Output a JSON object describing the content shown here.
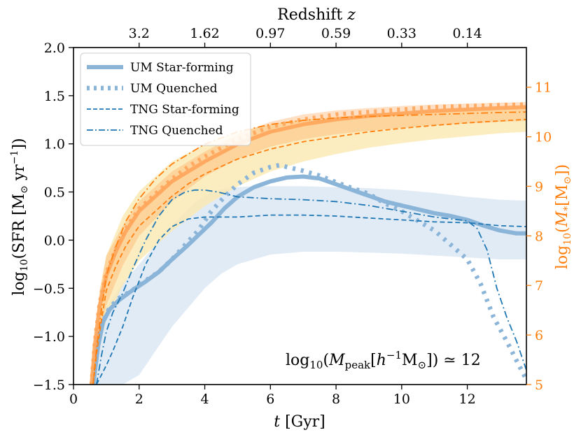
{
  "chart_data": {
    "type": "line",
    "title": "",
    "xlabel": "t [Gyr]",
    "ylabel": "log10(SFR [M⊙ yr−1])",
    "y2label": "log10(M* [M⊙])",
    "toplabel": "Redshift z",
    "annotation": "log10(Mpeak[h−1M⊙]) ≃ 12",
    "xlim": [
      0,
      13.8
    ],
    "ylim": [
      -1.5,
      2.0
    ],
    "y2lim": [
      5,
      11.8
    ],
    "x_ticks": [
      "0",
      "2",
      "4",
      "6",
      "8",
      "10",
      "12"
    ],
    "y_ticks": [
      "2.0",
      "1.5",
      "1.0",
      "0.5",
      "0.0",
      "−0.5",
      "−1.0",
      "−1.5"
    ],
    "y2_ticks": [
      "11",
      "10",
      "9",
      "8",
      "7",
      "6",
      "5"
    ],
    "top_ticks": [
      {
        "label": "3.2",
        "t": 2.0
      },
      {
        "label": "1.62",
        "t": 4.0
      },
      {
        "label": "0.97",
        "t": 6.0
      },
      {
        "label": "0.59",
        "t": 8.0
      },
      {
        "label": "0.33",
        "t": 10.0
      },
      {
        "label": "0.14",
        "t": 12.0
      }
    ],
    "colors": {
      "um": "#8ab4d8",
      "tng": "#1f77b4",
      "mass": "#ff7f0e",
      "mass_light": "#ffa55a",
      "band_blue": "#dce8f5",
      "band_yellow": "#fbe9b0"
    },
    "legend": {
      "position": "top-left",
      "entries": [
        {
          "label": "UM Star-forming",
          "style": "thick-solid"
        },
        {
          "label": "UM Quenched",
          "style": "thick-dotted"
        },
        {
          "label": "TNG Star-forming",
          "style": "dashed"
        },
        {
          "label": "TNG Quenched",
          "style": "dashdot"
        }
      ]
    },
    "sfr_series": [
      {
        "name": "UM Star-forming",
        "x": [
          0.6,
          0.75,
          0.9,
          1.1,
          1.4,
          1.8,
          2.2,
          2.6,
          3.0,
          3.4,
          3.8,
          4.2,
          4.6,
          5.0,
          5.5,
          6.0,
          6.5,
          7.0,
          7.5,
          8.0,
          8.5,
          9.0,
          9.5,
          10.0,
          10.5,
          11.0,
          11.5,
          12.0,
          12.5,
          13.0,
          13.5,
          13.8
        ],
        "y": [
          -1.5,
          -1.1,
          -0.85,
          -0.72,
          -0.62,
          -0.52,
          -0.43,
          -0.33,
          -0.2,
          -0.08,
          0.05,
          0.18,
          0.33,
          0.45,
          0.55,
          0.61,
          0.65,
          0.66,
          0.64,
          0.58,
          0.52,
          0.46,
          0.4,
          0.36,
          0.32,
          0.28,
          0.25,
          0.21,
          0.15,
          0.1,
          0.07,
          0.07
        ]
      },
      {
        "name": "UM Quenched",
        "x": [
          0.6,
          0.75,
          0.9,
          1.1,
          1.4,
          1.8,
          2.2,
          2.6,
          3.0,
          3.4,
          3.8,
          4.2,
          4.6,
          5.0,
          5.5,
          6.0,
          6.3,
          6.5,
          7.0,
          7.5,
          8.0,
          8.5,
          9.0,
          9.5,
          10.0,
          10.5,
          11.0,
          11.5,
          12.0,
          12.4,
          12.8,
          13.2,
          13.5,
          13.8
        ],
        "y": [
          -1.5,
          -1.0,
          -0.85,
          -0.7,
          -0.6,
          -0.52,
          -0.42,
          -0.33,
          -0.2,
          -0.05,
          0.1,
          0.3,
          0.45,
          0.58,
          0.7,
          0.76,
          0.78,
          0.76,
          0.72,
          0.67,
          0.6,
          0.54,
          0.48,
          0.38,
          0.3,
          0.2,
          0.1,
          -0.05,
          -0.2,
          -0.45,
          -0.8,
          -1.05,
          -1.25,
          -1.45
        ]
      },
      {
        "name": "TNG Star-forming",
        "x": [
          0.7,
          0.85,
          1.0,
          1.2,
          1.5,
          1.8,
          2.2,
          2.6,
          3.0,
          3.5,
          4.0,
          4.5,
          5.0,
          5.5,
          6.0,
          7.0,
          8.0,
          9.0,
          10.0,
          11.0,
          12.0,
          13.0,
          13.8
        ],
        "y": [
          -1.5,
          -1.4,
          -1.3,
          -1.15,
          -0.9,
          -0.6,
          -0.25,
          0.0,
          0.14,
          0.22,
          0.24,
          0.24,
          0.24,
          0.25,
          0.26,
          0.26,
          0.25,
          0.23,
          0.21,
          0.19,
          0.18,
          0.15,
          0.14
        ]
      },
      {
        "name": "TNG Quenched",
        "x": [
          0.7,
          0.85,
          1.0,
          1.2,
          1.5,
          1.8,
          2.2,
          2.6,
          3.0,
          3.4,
          3.7,
          4.0,
          4.4,
          5.0,
          6.0,
          7.0,
          8.0,
          9.0,
          10.0,
          11.0,
          11.5,
          12.0,
          12.3,
          12.6,
          12.9,
          13.2,
          13.5,
          13.8
        ],
        "y": [
          -1.5,
          -1.2,
          -0.95,
          -0.75,
          -0.55,
          -0.3,
          0.0,
          0.25,
          0.42,
          0.5,
          0.52,
          0.52,
          0.5,
          0.45,
          0.43,
          0.42,
          0.4,
          0.36,
          0.3,
          0.24,
          0.22,
          0.2,
          0.12,
          -0.1,
          -0.5,
          -0.8,
          -1.05,
          -1.35
        ]
      }
    ],
    "sfr_band": {
      "name": "UM Star-forming scatter",
      "x": [
        0.6,
        1.0,
        1.5,
        2.0,
        2.5,
        3.0,
        3.5,
        4.0,
        4.5,
        5.0,
        5.5,
        6.0,
        7.0,
        8.0,
        9.0,
        10.0,
        11.0,
        12.0,
        13.0,
        13.8
      ],
      "lower": [
        -1.5,
        -1.5,
        -1.5,
        -1.4,
        -1.15,
        -0.9,
        -0.7,
        -0.5,
        -0.35,
        -0.25,
        -0.2,
        -0.15,
        -0.12,
        -0.12,
        -0.13,
        -0.14,
        -0.16,
        -0.18,
        -0.2,
        -0.2
      ],
      "upper": [
        -1.2,
        -0.7,
        -0.45,
        -0.25,
        -0.05,
        0.15,
        0.33,
        0.47,
        0.53,
        0.55,
        0.56,
        0.56,
        0.56,
        0.55,
        0.54,
        0.52,
        0.49,
        0.45,
        0.42,
        0.41
      ]
    },
    "mass_series": [
      {
        "name": "UM Star-forming M*",
        "x": [
          0.55,
          0.65,
          0.8,
          1.0,
          1.3,
          1.6,
          2.0,
          2.5,
          3.0,
          3.5,
          4.0,
          5.0,
          6.0,
          7.0,
          8.0,
          9.0,
          10.0,
          11.0,
          12.0,
          13.0,
          13.8
        ],
        "y": [
          5.0,
          5.8,
          6.6,
          7.2,
          7.7,
          8.1,
          8.5,
          8.8,
          9.1,
          9.3,
          9.5,
          9.85,
          10.1,
          10.25,
          10.35,
          10.42,
          10.47,
          10.52,
          10.55,
          10.58,
          10.6
        ]
      },
      {
        "name": "UM Quenched M*",
        "x": [
          0.55,
          0.65,
          0.8,
          1.0,
          1.3,
          1.6,
          2.0,
          2.5,
          3.0,
          3.5,
          4.0,
          5.0,
          6.0,
          7.0,
          8.0,
          9.0,
          10.0,
          11.0,
          12.0,
          13.0,
          13.8
        ],
        "y": [
          5.0,
          5.85,
          6.65,
          7.25,
          7.75,
          8.15,
          8.55,
          8.85,
          9.15,
          9.4,
          9.6,
          9.95,
          10.2,
          10.35,
          10.45,
          10.5,
          10.55,
          10.6,
          10.62,
          10.64,
          10.65
        ]
      },
      {
        "name": "TNG Star-forming M*",
        "x": [
          0.6,
          0.7,
          0.85,
          1.0,
          1.3,
          1.6,
          2.0,
          2.5,
          3.0,
          3.5,
          4.0,
          5.0,
          6.0,
          7.0,
          8.0,
          9.0,
          10.0,
          11.0,
          12.0,
          13.0,
          13.8
        ],
        "y": [
          5.0,
          5.6,
          6.3,
          6.9,
          7.4,
          7.8,
          8.2,
          8.5,
          8.8,
          9.05,
          9.25,
          9.55,
          9.75,
          9.9,
          10.0,
          10.1,
          10.17,
          10.23,
          10.28,
          10.32,
          10.35
        ]
      },
      {
        "name": "TNG Quenched M*",
        "x": [
          0.6,
          0.7,
          0.85,
          1.0,
          1.3,
          1.6,
          2.0,
          2.5,
          3.0,
          3.5,
          4.0,
          5.0,
          6.0,
          7.0,
          8.0,
          9.0,
          10.0,
          11.0,
          12.0,
          13.0,
          13.8
        ],
        "y": [
          5.0,
          5.7,
          6.5,
          7.2,
          7.8,
          8.3,
          8.75,
          9.15,
          9.45,
          9.65,
          9.85,
          10.1,
          10.25,
          10.33,
          10.38,
          10.41,
          10.43,
          10.45,
          10.47,
          10.49,
          10.5
        ]
      }
    ],
    "mass_bands": [
      {
        "name": "UM M* scatter",
        "x": [
          0.55,
          0.8,
          1.0,
          1.5,
          2.0,
          3.0,
          4.0,
          5.0,
          6.0,
          7.0,
          8.0,
          9.0,
          10.0,
          11.0,
          12.0,
          13.0,
          13.8
        ],
        "lower": [
          5.0,
          6.0,
          6.6,
          7.4,
          8.0,
          8.7,
          9.2,
          9.55,
          9.8,
          9.95,
          10.05,
          10.12,
          10.18,
          10.23,
          10.27,
          10.3,
          10.32
        ],
        "upper": [
          5.2,
          6.9,
          7.6,
          8.2,
          8.7,
          9.3,
          9.7,
          10.05,
          10.3,
          10.45,
          10.53,
          10.58,
          10.62,
          10.65,
          10.67,
          10.69,
          10.7
        ]
      },
      {
        "name": "TNG M* scatter",
        "x": [
          0.6,
          0.8,
          1.0,
          1.5,
          2.0,
          3.0,
          4.0,
          5.0,
          6.0,
          7.0,
          8.0,
          9.0,
          10.0,
          11.0,
          12.0,
          13.0,
          13.8
        ],
        "lower": [
          5.0,
          5.8,
          6.3,
          7.0,
          7.5,
          8.1,
          8.6,
          9.0,
          9.3,
          9.5,
          9.65,
          9.78,
          9.87,
          9.95,
          10.01,
          10.07,
          10.1
        ],
        "upper": [
          5.3,
          6.9,
          7.6,
          8.4,
          8.9,
          9.5,
          9.85,
          10.1,
          10.25,
          10.35,
          10.4,
          10.45,
          10.5,
          10.53,
          10.56,
          10.58,
          10.6
        ]
      }
    ]
  }
}
